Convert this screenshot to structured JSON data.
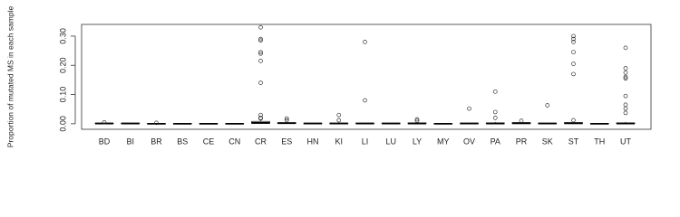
{
  "chart_data": {
    "type": "box",
    "y_label": "Proportion of mutated MS in each sample",
    "categories": [
      "BD",
      "BI",
      "BR",
      "BS",
      "CE",
      "CN",
      "CR",
      "ES",
      "HN",
      "KI",
      "LI",
      "LU",
      "LY",
      "MY",
      "OV",
      "PA",
      "PR",
      "SK",
      "ST",
      "TH",
      "UT"
    ],
    "ylim": [
      -0.019,
      0.34
    ],
    "yticks": [
      {
        "value": 0,
        "label": "0.00"
      },
      {
        "value": 0.1,
        "label": "0.10"
      },
      {
        "value": 0.2,
        "label": "0.20"
      },
      {
        "value": 0.3,
        "label": "0.30"
      }
    ],
    "boxes": [
      {
        "low": 0,
        "q1": 0,
        "median": 0.001,
        "q3": 0.002,
        "high": 0.003,
        "outliers": [
          0.005
        ]
      },
      {
        "low": 0,
        "q1": 0,
        "median": 0.001,
        "q3": 0.002,
        "high": 0.003,
        "outliers": []
      },
      {
        "low": 0,
        "q1": 0,
        "median": 0,
        "q3": 0.001,
        "high": 0.002,
        "outliers": [
          0.003
        ]
      },
      {
        "low": 0,
        "q1": 0,
        "median": 0,
        "q3": 0.001,
        "high": 0.002,
        "outliers": []
      },
      {
        "low": 0,
        "q1": 0,
        "median": 0,
        "q3": 0.001,
        "high": 0.002,
        "outliers": []
      },
      {
        "low": 0,
        "q1": 0,
        "median": 0,
        "q3": 0.001,
        "high": 0.002,
        "outliers": []
      },
      {
        "low": 0,
        "q1": 0.001,
        "median": 0.003,
        "q3": 0.008,
        "high": 0.014,
        "outliers": [
          0.33,
          0.29,
          0.285,
          0.245,
          0.24,
          0.215,
          0.14,
          0.03,
          0.02,
          0.018
        ]
      },
      {
        "low": 0,
        "q1": 0.001,
        "median": 0.002,
        "q3": 0.004,
        "high": 0.008,
        "outliers": [
          0.018,
          0.012
        ]
      },
      {
        "low": 0,
        "q1": 0,
        "median": 0.001,
        "q3": 0.002,
        "high": 0.003,
        "outliers": []
      },
      {
        "low": 0,
        "q1": 0,
        "median": 0.001,
        "q3": 0.002,
        "high": 0.005,
        "outliers": [
          0.03,
          0.012
        ]
      },
      {
        "low": 0,
        "q1": 0,
        "median": 0.001,
        "q3": 0.002,
        "high": 0.004,
        "outliers": [
          0.28,
          0.08
        ]
      },
      {
        "low": 0,
        "q1": 0,
        "median": 0.001,
        "q3": 0.002,
        "high": 0.003,
        "outliers": []
      },
      {
        "low": 0,
        "q1": 0,
        "median": 0.001,
        "q3": 0.003,
        "high": 0.006,
        "outliers": [
          0.015,
          0.01
        ]
      },
      {
        "low": 0,
        "q1": 0,
        "median": 0,
        "q3": 0.001,
        "high": 0.002,
        "outliers": []
      },
      {
        "low": 0,
        "q1": 0,
        "median": 0.001,
        "q3": 0.002,
        "high": 0.004,
        "outliers": [
          0.052
        ]
      },
      {
        "low": 0,
        "q1": 0,
        "median": 0.001,
        "q3": 0.003,
        "high": 0.006,
        "outliers": [
          0.11,
          0.04,
          0.02
        ]
      },
      {
        "low": 0,
        "q1": 0,
        "median": 0.002,
        "q3": 0.004,
        "high": 0.007,
        "outliers": [
          0.01
        ]
      },
      {
        "low": 0,
        "q1": 0,
        "median": 0.001,
        "q3": 0.002,
        "high": 0.003,
        "outliers": [
          0.063
        ]
      },
      {
        "low": 0,
        "q1": 0,
        "median": 0.002,
        "q3": 0.004,
        "high": 0.007,
        "outliers": [
          0.3,
          0.29,
          0.28,
          0.245,
          0.205,
          0.17,
          0.012
        ]
      },
      {
        "low": 0,
        "q1": 0,
        "median": 0,
        "q3": 0.001,
        "high": 0.002,
        "outliers": []
      },
      {
        "low": 0,
        "q1": 0,
        "median": 0.001,
        "q3": 0.003,
        "high": 0.006,
        "outliers": [
          0.26,
          0.19,
          0.175,
          0.16,
          0.155,
          0.095,
          0.065,
          0.052,
          0.037
        ]
      }
    ]
  }
}
